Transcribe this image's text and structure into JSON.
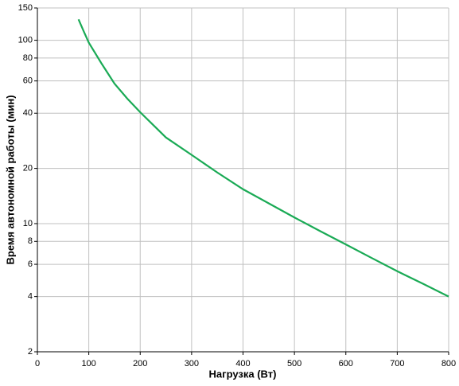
{
  "chart_data": {
    "type": "line",
    "x_label": "Нагрузка (Вт)",
    "y_label": "Время автономной работы (мин)",
    "series": [
      {
        "color": "#1aaa55",
        "x": [
          80,
          90,
          100,
          125,
          150,
          175,
          200,
          250,
          300,
          350,
          400,
          450,
          500,
          550,
          600,
          650,
          700,
          750,
          800
        ],
        "values": [
          130,
          112,
          97,
          74.5,
          58,
          48,
          40.5,
          29.5,
          23.7,
          19,
          15.4,
          12.9,
          10.8,
          9.1,
          7.7,
          6.5,
          5.5,
          4.7,
          4
        ]
      }
    ],
    "xlim": [
      0,
      800
    ],
    "xticks": [
      0,
      100,
      200,
      300,
      400,
      500,
      600,
      700,
      800
    ],
    "ylim": [
      2,
      150
    ],
    "yticks": [
      2,
      4,
      6,
      8,
      10,
      20,
      40,
      60,
      80,
      100,
      150
    ],
    "ylog": true,
    "grid": true
  }
}
